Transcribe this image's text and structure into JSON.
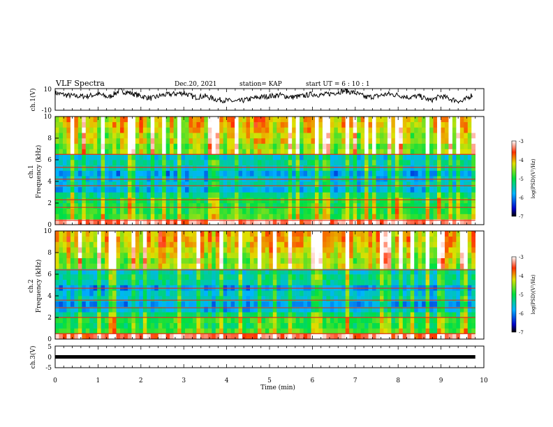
{
  "header": {
    "title": "VLF Spectra",
    "date": "Dec.20, 2021",
    "station": "station= KAP",
    "start": "start  UT  =   6  : 10 : 1"
  },
  "chart_data": [
    {
      "type": "line",
      "panel": "ch1-waveform",
      "ylabel": "ch.1(V)",
      "ylim": [
        -10,
        10
      ],
      "yticks": [
        "10",
        "-10"
      ],
      "xlim": [
        0,
        10
      ],
      "description_series": "voltage trace",
      "x": [
        0.0,
        0.25,
        0.5,
        0.75,
        1.0,
        1.25,
        1.5,
        1.75,
        2.0,
        2.25,
        2.5,
        2.75,
        3.0,
        3.25,
        3.5,
        3.75,
        4.0,
        4.25,
        4.5,
        4.75,
        5.0,
        5.25,
        5.5,
        5.75,
        6.0,
        6.25,
        6.5,
        6.75,
        7.0,
        7.25,
        7.5,
        7.75,
        8.0,
        8.25,
        8.5,
        8.75,
        9.0,
        9.25,
        9.5,
        9.75
      ],
      "y": [
        6,
        4,
        3,
        3,
        5,
        2,
        8,
        6,
        3,
        1,
        4,
        5,
        6,
        2,
        3,
        0,
        -1,
        -2,
        0,
        2,
        3,
        4,
        2,
        3,
        5,
        4,
        6,
        8,
        6,
        2,
        3,
        5,
        4,
        2,
        3,
        -1,
        3,
        0,
        -2,
        5
      ]
    },
    {
      "type": "heatmap",
      "panel": "ch1-spectrogram",
      "ylabel_line1": "ch.1",
      "ylabel_line2": "Frequency  (kHz)",
      "ylim": [
        0,
        10
      ],
      "yticks": [
        "0",
        "2",
        "4",
        "6",
        "8",
        "10"
      ],
      "xlim": [
        0,
        10
      ],
      "colorbar": {
        "label": "log(PSD)(V²/Hz)",
        "range": [
          -7,
          -3
        ],
        "ticks": [
          "-3",
          "-4",
          "-5",
          "-6",
          "-7"
        ]
      },
      "freq_bands_khz": [
        0,
        0.5,
        1,
        1.5,
        2,
        2.5,
        3,
        3.5,
        4,
        4.5,
        5,
        5.5,
        6,
        6.5,
        7,
        7.5,
        8,
        8.5,
        9,
        9.5
      ],
      "band_log_psd": [
        -3.3,
        -4.8,
        -4.9,
        -5.0,
        -5.0,
        -5.3,
        -5.8,
        -5.6,
        -5.7,
        -5.9,
        -5.5,
        -5.4,
        -5.6,
        -4.5,
        -4.6,
        -4.3,
        -4.4,
        -4.2,
        -4.1,
        -4.1
      ],
      "horizontal_lines_khz": [
        0.4,
        1.6,
        2.3,
        3.6,
        4.2,
        5.3,
        6.5
      ]
    },
    {
      "type": "heatmap",
      "panel": "ch2-spectrogram",
      "ylabel_line1": "ch.2",
      "ylabel_line2": "Frequency  (kHz)",
      "ylim": [
        0,
        10
      ],
      "yticks": [
        "0",
        "2",
        "4",
        "6",
        "8",
        "10"
      ],
      "xlim": [
        0,
        10
      ],
      "colorbar": {
        "label": "log(PSD)(V²/Hz)",
        "range": [
          -7,
          -3
        ],
        "ticks": [
          "-3",
          "-4",
          "-5",
          "-6",
          "-7"
        ]
      },
      "freq_bands_khz": [
        0,
        0.5,
        1,
        1.5,
        2,
        2.5,
        3,
        3.5,
        4,
        4.5,
        5,
        5.5,
        6,
        6.5,
        7,
        7.5,
        8,
        8.5,
        9,
        9.5
      ],
      "band_log_psd": [
        -3.4,
        -4.8,
        -5.0,
        -4.9,
        -5.2,
        -5.7,
        -5.9,
        -5.5,
        -5.6,
        -5.9,
        -5.4,
        -5.3,
        -5.5,
        -4.4,
        -4.5,
        -4.3,
        -4.2,
        -4.1,
        -4.0,
        -4.0
      ],
      "horizontal_lines_khz": [
        0.5,
        2.0,
        2.9,
        3.6,
        4.7,
        6.4
      ]
    },
    {
      "type": "line",
      "panel": "ch3-waveform",
      "ylabel": "ch.3(V)",
      "ylim": [
        -5,
        5
      ],
      "yticks": [
        "5",
        "0",
        "-5"
      ],
      "xlim": [
        0,
        10
      ],
      "xlabel": "Time  (min)",
      "xticks": [
        "0",
        "1",
        "2",
        "3",
        "4",
        "5",
        "6",
        "7",
        "8",
        "9",
        "10"
      ],
      "x": [
        0,
        9.8
      ],
      "y": [
        0,
        0
      ]
    }
  ],
  "colors": {
    "axis": "#000000",
    "trace": "#000000"
  }
}
